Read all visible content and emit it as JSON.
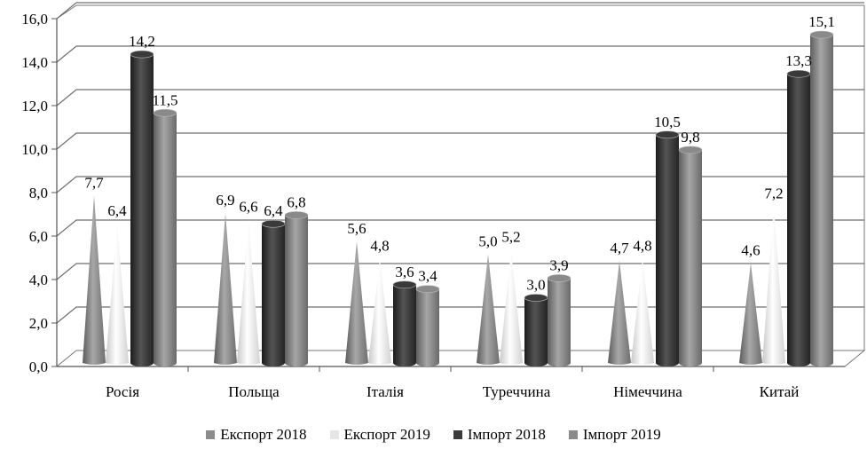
{
  "chart_data": {
    "type": "bar",
    "categories": [
      "Росія",
      "Польща",
      "Італія",
      "Туреччина",
      "Німеччина",
      "Китай"
    ],
    "series": [
      {
        "name": "Експорт 2018",
        "shape": "cone",
        "color": "#8c8c8c",
        "values": [
          7.7,
          6.9,
          5.6,
          5.0,
          4.7,
          4.6
        ],
        "labels": [
          "7,7",
          "6,9",
          "5,6",
          "5,0",
          "4,7",
          "4,6"
        ]
      },
      {
        "name": "Експорт 2019",
        "shape": "cone",
        "color": "#e6e6e6",
        "values": [
          6.4,
          6.6,
          4.8,
          5.2,
          4.8,
          7.2
        ],
        "labels": [
          "6,4",
          "6,6",
          "4,8",
          "5,2",
          "4,8",
          "7,2"
        ]
      },
      {
        "name": "Імпорт 2018",
        "shape": "cylinder",
        "color": "#3a3a3a",
        "values": [
          14.2,
          6.4,
          3.6,
          3.0,
          10.5,
          13.3
        ],
        "labels": [
          "14,2",
          "6,4",
          "3,6",
          "3,0",
          "10,5",
          "13,3"
        ]
      },
      {
        "name": "Імпорт 2019",
        "shape": "cylinder",
        "color": "#8a8a8a",
        "values": [
          11.5,
          6.8,
          3.4,
          3.9,
          9.8,
          15.1
        ],
        "labels": [
          "11,5",
          "6,8",
          "3,4",
          "3,9",
          "9,8",
          "15,1"
        ]
      }
    ],
    "yticks": [
      "0,0",
      "2,0",
      "4,0",
      "6,0",
      "8,0",
      "10,0",
      "12,0",
      "14,0",
      "16,0"
    ],
    "ylim": [
      0,
      16
    ],
    "title": "",
    "xlabel": "",
    "ylabel": "",
    "grid": true,
    "legend_position": "bottom"
  }
}
